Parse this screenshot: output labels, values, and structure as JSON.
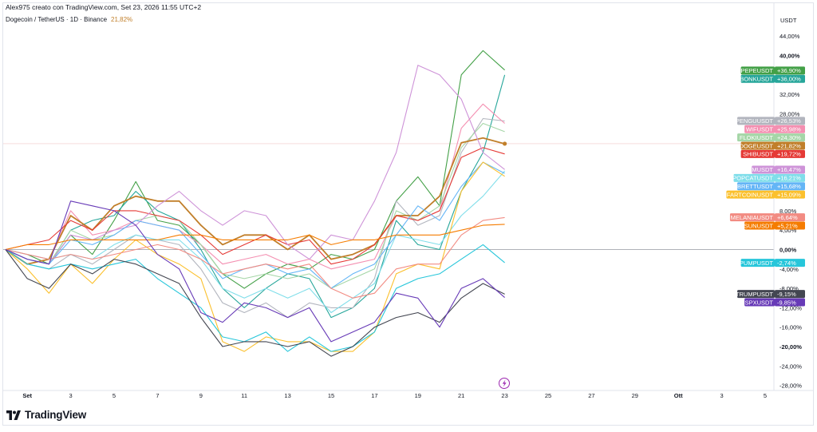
{
  "header": {
    "attribution": "Alex975 creato con TradingView.com, Set 23, 2026 11:55 UTC+2",
    "symbol": "Dogecoin / TetherUS · 1D · Binance",
    "last_value": "21,82%"
  },
  "axis_unit": "USDT",
  "logo_text": "TradingView",
  "event_icon": "lightning-icon",
  "colors": {
    "zero_line": "#9598a1",
    "grid": "#f0f3fa",
    "dogeusdt": "#c17f2a"
  },
  "chart_data": {
    "type": "line",
    "xlabel": "",
    "ylabel": "",
    "x": [
      "31",
      "1",
      "2",
      "3",
      "4",
      "5",
      "6",
      "7",
      "8",
      "9",
      "10",
      "11",
      "12",
      "13",
      "14",
      "15",
      "16",
      "17",
      "18",
      "19",
      "20",
      "21",
      "22",
      "23"
    ],
    "x_ticks": [
      {
        "i": 1,
        "label": "Set",
        "bold": true
      },
      {
        "i": 3,
        "label": "3"
      },
      {
        "i": 5,
        "label": "5"
      },
      {
        "i": 7,
        "label": "7"
      },
      {
        "i": 9,
        "label": "9"
      },
      {
        "i": 11,
        "label": "11"
      },
      {
        "i": 13,
        "label": "13"
      },
      {
        "i": 15,
        "label": "15"
      },
      {
        "i": 17,
        "label": "17"
      },
      {
        "i": 19,
        "label": "19"
      },
      {
        "i": 21,
        "label": "21"
      },
      {
        "i": 23,
        "label": "23"
      },
      {
        "i": 25,
        "label": "25"
      },
      {
        "i": 27,
        "label": "27"
      },
      {
        "i": 29,
        "label": "29"
      },
      {
        "i": 31,
        "label": "Ott",
        "bold": true
      },
      {
        "i": 33,
        "label": "3"
      },
      {
        "i": 35,
        "label": "5"
      }
    ],
    "ylim": [
      -28,
      44
    ],
    "y_ticks": [
      {
        "v": 44,
        "label": "44,00%"
      },
      {
        "v": 40,
        "label": "40,00%",
        "bold": true
      },
      {
        "v": 32,
        "label": "32,00%"
      },
      {
        "v": 28,
        "label": "28,00%"
      },
      {
        "v": 8,
        "label": "8,00%"
      },
      {
        "v": 4,
        "label": "4,00%"
      },
      {
        "v": 0,
        "label": "0,00%",
        "bold": true
      },
      {
        "v": -4,
        "label": "-4,00%"
      },
      {
        "v": -8,
        "label": "-8,00%"
      },
      {
        "v": -12,
        "label": "-12,00%"
      },
      {
        "v": -16,
        "label": "-16,00%"
      },
      {
        "v": -20,
        "label": "-20,00%",
        "bold": true
      },
      {
        "v": -24,
        "label": "-24,00%"
      },
      {
        "v": -28,
        "label": "-28,00%"
      }
    ],
    "grid": false,
    "series": [
      {
        "name": "PEPEUSDT",
        "label": "+36,90%",
        "last": 36.9,
        "color": "#43a047",
        "values": [
          0,
          -1,
          -3,
          3,
          -1,
          6,
          14,
          6,
          5,
          1,
          -5,
          -8,
          -5,
          -3,
          -4,
          -1,
          -2,
          0,
          10,
          15,
          9,
          36,
          41,
          37
        ]
      },
      {
        "name": "BONKUSDT",
        "label": "+36,00%",
        "last": 36.0,
        "color": "#26a69a",
        "values": [
          0,
          -2,
          -3,
          4,
          6,
          7,
          12,
          8,
          6,
          0,
          -8,
          -12,
          -8,
          -5,
          -6,
          -14,
          -12,
          -8,
          6,
          1,
          0,
          12,
          20,
          36
        ]
      },
      {
        "name": "PENGUUSDT",
        "label": "+26,53%",
        "last": 26.53,
        "color": "#b2b5be",
        "values": [
          0,
          -3,
          -4,
          -1,
          -3,
          0,
          3,
          2,
          1,
          -4,
          -11,
          -13,
          -11,
          -14,
          -11,
          -12,
          -12,
          -6,
          10,
          5,
          7,
          20,
          27,
          26.5
        ]
      },
      {
        "name": "WIFUSDT",
        "label": "+25,98%",
        "last": 25.98,
        "color": "#f48fb1",
        "values": [
          0,
          -1,
          -2,
          8,
          3,
          4,
          6,
          5,
          4,
          1,
          -3,
          -2,
          -1,
          -3,
          -2,
          -4,
          -3,
          -2,
          7,
          6,
          8,
          25,
          30,
          26
        ]
      },
      {
        "name": "FLOKIUSDT",
        "label": "+24,30%",
        "last": 24.3,
        "color": "#a5d6a7",
        "values": [
          0,
          -2,
          -3,
          4,
          2,
          3,
          6,
          7,
          6,
          1,
          -5,
          -6,
          -5,
          -6,
          -5,
          -8,
          -6,
          -4,
          8,
          6,
          9,
          21,
          26,
          24.3
        ]
      },
      {
        "name": "DOGEUSDT",
        "label": "+21,82%",
        "last": 21.82,
        "color": "#c17f2a",
        "values": [
          0,
          -3,
          -2,
          7,
          4,
          9,
          11,
          10,
          10,
          5,
          1,
          3,
          3,
          0,
          3,
          -2,
          -1,
          1,
          7,
          7,
          11,
          22,
          23,
          21.8
        ]
      },
      {
        "name": "SHIBUSDT",
        "label": "+19,72%",
        "last": 19.72,
        "color": "#e53935",
        "values": [
          0,
          1,
          2,
          6,
          4,
          8,
          8,
          7,
          6,
          3,
          -1,
          1,
          3,
          1,
          2,
          -3,
          -2,
          1,
          7,
          6,
          8,
          19,
          21,
          19.7
        ]
      },
      {
        "name": "MUSDT",
        "label": "+16,47%",
        "last": 16.47,
        "color": "#ce93d8",
        "values": [
          0,
          -2,
          -3,
          3,
          2,
          4,
          5,
          9,
          12,
          8,
          5,
          8,
          7,
          1,
          -2,
          3,
          2,
          10,
          20,
          38,
          36,
          31,
          20,
          16.5
        ]
      },
      {
        "name": "POPCATUSDT",
        "label": "+16,21%",
        "last": 16.21,
        "color": "#80deea",
        "values": [
          0,
          -1,
          -2,
          -1,
          -2,
          1,
          3,
          2,
          2,
          -2,
          -8,
          -10,
          -8,
          -10,
          -8,
          -13,
          -10,
          -7,
          3,
          2,
          1,
          7,
          11,
          16.2
        ]
      },
      {
        "name": "BRETTUSDT",
        "label": "+15,68%",
        "last": 15.68,
        "color": "#64b5f6",
        "values": [
          0,
          -2,
          -3,
          2,
          1,
          3,
          6,
          5,
          4,
          -1,
          -6,
          -4,
          -3,
          -5,
          -4,
          -8,
          -5,
          -3,
          3,
          9,
          6,
          13,
          18,
          15.7
        ]
      },
      {
        "name": "FARTCOINUSDT",
        "label": "+15,09%",
        "last": 15.09,
        "color": "#fbc02d",
        "values": [
          0,
          -4,
          -9,
          -3,
          -7,
          -2,
          2,
          -1,
          -3,
          -6,
          -19,
          -21,
          -18,
          -19,
          -19,
          -21,
          -21,
          -17,
          -5,
          -3,
          -4,
          12,
          18,
          15.1
        ]
      },
      {
        "name": "MELANIAUSDT",
        "label": "+6,64%",
        "last": 6.64,
        "color": "#f28b82",
        "values": [
          0,
          -1,
          -2,
          -1,
          -2,
          -1,
          0,
          1,
          0,
          -2,
          -5,
          -4,
          -3,
          -4,
          -3,
          -8,
          -10,
          -9,
          -4,
          -3,
          -3,
          3,
          6,
          6.6
        ]
      },
      {
        "name": "SUNUSDT",
        "label": "+5,21%",
        "last": 5.21,
        "color": "#f57c00",
        "values": [
          0,
          1,
          1,
          2,
          2,
          2,
          2,
          2,
          3,
          3,
          2,
          2,
          2,
          2,
          3,
          1,
          2,
          2,
          3,
          3,
          3,
          4,
          5,
          5.2
        ]
      },
      {
        "name": "PUMPUSDT",
        "label": "-2,74%",
        "last": -2.74,
        "color": "#26c6da",
        "values": [
          0,
          -3,
          -4,
          -3,
          -4,
          -3,
          -2,
          -6,
          -9,
          -12,
          -18,
          -19,
          -17,
          -21,
          -18,
          -21,
          -20,
          -17,
          -8,
          -6,
          -5,
          -2,
          1,
          -2.7
        ]
      },
      {
        "name": "TRUMPUSDT",
        "label": "-9,15%",
        "last": -9.15,
        "color": "#434651",
        "values": [
          0,
          -6,
          -8,
          -3,
          -5,
          -2,
          -3,
          -5,
          -7,
          -14,
          -20,
          -19,
          -19,
          -20,
          -19,
          -22,
          -20,
          -16,
          -14,
          -13,
          -15,
          -10,
          -7,
          -9.2
        ]
      },
      {
        "name": "SPXUSDT",
        "label": "-9,85%",
        "last": -9.85,
        "color": "#673ab7",
        "values": [
          0,
          -2,
          -3,
          10,
          9,
          8,
          5,
          -1,
          -4,
          -13,
          -15,
          -11,
          -12,
          -14,
          -12,
          -19,
          -17,
          -15,
          -9,
          -10,
          -16,
          -8,
          -6,
          -9.9
        ]
      }
    ]
  }
}
